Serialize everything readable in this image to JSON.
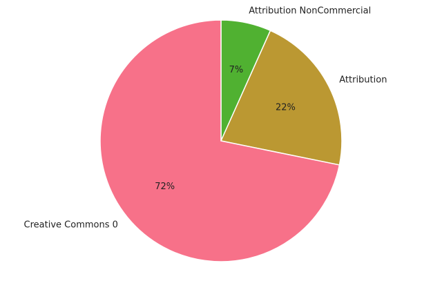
{
  "chart_data": {
    "type": "pie",
    "title": "",
    "start_angle_deg": 90,
    "direction": "clockwise",
    "slices": [
      {
        "label": "Attribution NonCommercial",
        "value": 6.7,
        "pct_label": "7%",
        "color": "#50b131"
      },
      {
        "label": "Attribution",
        "value": 21.5,
        "pct_label": "22%",
        "color": "#bb9832"
      },
      {
        "label": "Creative Commons 0",
        "value": 71.8,
        "pct_label": "72%",
        "color": "#f77189"
      }
    ]
  }
}
